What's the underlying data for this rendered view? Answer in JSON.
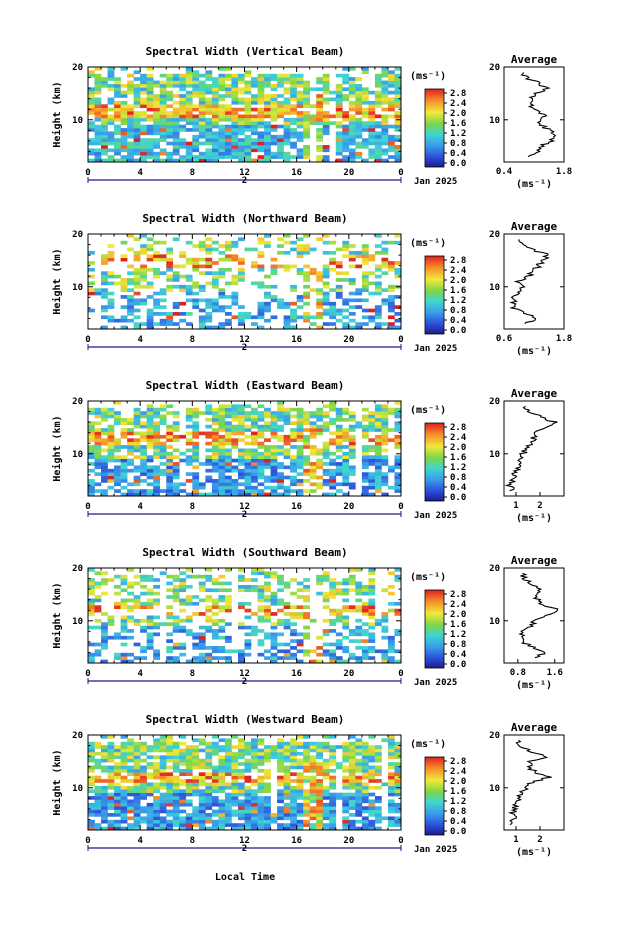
{
  "x_label": "Local Time",
  "date_label": "Jan 2025",
  "day_label": "2",
  "y_label": "Height (km)",
  "colorbar_unit": "(ms⁻¹)",
  "colorbar_ticks": [
    "0.0",
    "0.4",
    "0.8",
    "1.2",
    "1.6",
    "2.0",
    "2.4",
    "2.8"
  ],
  "avg_title": "Average",
  "avg_unit": "(ms⁻¹)",
  "x_ticks": [
    "0",
    "4",
    "8",
    "12",
    "16",
    "20",
    "0"
  ],
  "y_ticks": [
    "10",
    "20"
  ],
  "chart_data": [
    {
      "type": "heatmap",
      "title": "Spectral Width (Vertical Beam)",
      "ylabel": "Height (km)",
      "xlabel": "Local Time",
      "xlim": [
        0,
        24
      ],
      "ylim": [
        2,
        20
      ],
      "colorbar_range": [
        0.0,
        3.0
      ],
      "avg_profile": {
        "xlim": [
          0.4,
          1.8
        ],
        "xticks": [
          "0.4",
          "1.8"
        ],
        "heights": [
          3,
          4,
          5,
          6,
          7,
          8,
          9,
          10,
          11,
          12,
          13,
          14,
          15,
          16,
          17,
          18,
          19
        ],
        "values": [
          1.0,
          1.2,
          1.3,
          1.5,
          1.6,
          1.45,
          1.3,
          1.2,
          1.35,
          1.1,
          1.0,
          1.05,
          1.15,
          1.4,
          1.2,
          0.9,
          0.85
        ]
      }
    },
    {
      "type": "heatmap",
      "title": "Spectral Width (Northward Beam)",
      "ylabel": "Height (km)",
      "xlabel": "Local Time",
      "xlim": [
        0,
        24
      ],
      "ylim": [
        2,
        20
      ],
      "colorbar_range": [
        0.0,
        3.0
      ],
      "avg_profile": {
        "xlim": [
          0.6,
          1.8
        ],
        "xticks": [
          "0.6",
          "1.8"
        ],
        "heights": [
          3,
          4,
          5,
          6,
          7,
          8,
          9,
          10,
          11,
          12,
          13,
          14,
          15,
          16,
          17,
          18,
          19
        ],
        "values": [
          1.05,
          1.25,
          1.0,
          0.8,
          0.78,
          0.8,
          0.85,
          0.95,
          0.85,
          1.1,
          1.2,
          1.3,
          1.35,
          1.5,
          1.2,
          1.05,
          0.9
        ]
      }
    },
    {
      "type": "heatmap",
      "title": "Spectral Width (Eastward Beam)",
      "ylabel": "Height (km)",
      "xlabel": "Local Time",
      "xlim": [
        0,
        24
      ],
      "ylim": [
        2,
        20
      ],
      "colorbar_range": [
        0.0,
        3.0
      ],
      "avg_profile": {
        "xlim": [
          0.5,
          3.0
        ],
        "xticks": [
          "1",
          "2"
        ],
        "heights": [
          3,
          4,
          5,
          6,
          7,
          8,
          9,
          10,
          11,
          12,
          13,
          14,
          15,
          16,
          17,
          18,
          19
        ],
        "values": [
          0.8,
          0.75,
          0.85,
          0.9,
          1.0,
          1.1,
          1.2,
          1.3,
          1.45,
          1.6,
          1.75,
          1.9,
          2.2,
          2.6,
          2.0,
          1.6,
          1.4
        ]
      }
    },
    {
      "type": "heatmap",
      "title": "Spectral Width (Southward Beam)",
      "ylabel": "Height (km)",
      "xlabel": "Local Time",
      "xlim": [
        0,
        24
      ],
      "ylim": [
        2,
        20
      ],
      "colorbar_range": [
        0.0,
        3.0
      ],
      "avg_profile": {
        "xlim": [
          0.5,
          1.8
        ],
        "xticks": [
          "0.8",
          "1.6"
        ],
        "heights": [
          3,
          4,
          5,
          6,
          7,
          8,
          9,
          10,
          11,
          12,
          13,
          14,
          15,
          16,
          17,
          18,
          19
        ],
        "values": [
          1.2,
          1.35,
          1.1,
          0.9,
          0.85,
          0.95,
          1.05,
          1.2,
          1.45,
          1.7,
          1.3,
          1.25,
          1.15,
          1.3,
          1.05,
          0.95,
          0.9
        ]
      }
    },
    {
      "type": "heatmap",
      "title": "Spectral Width (Westward Beam)",
      "ylabel": "Height (km)",
      "xlabel": "Local Time",
      "xlim": [
        0,
        24
      ],
      "ylim": [
        2,
        20
      ],
      "colorbar_range": [
        0.0,
        3.0
      ],
      "avg_profile": {
        "xlim": [
          0.5,
          3.0
        ],
        "xticks": [
          "1",
          "2"
        ],
        "heights": [
          3,
          4,
          5,
          6,
          7,
          8,
          9,
          10,
          11,
          12,
          13,
          14,
          15,
          16,
          17,
          18,
          19
        ],
        "values": [
          0.8,
          0.9,
          0.85,
          0.9,
          1.0,
          1.1,
          1.25,
          1.45,
          1.6,
          2.4,
          1.8,
          1.5,
          1.6,
          2.3,
          1.5,
          1.2,
          1.1
        ]
      }
    }
  ]
}
